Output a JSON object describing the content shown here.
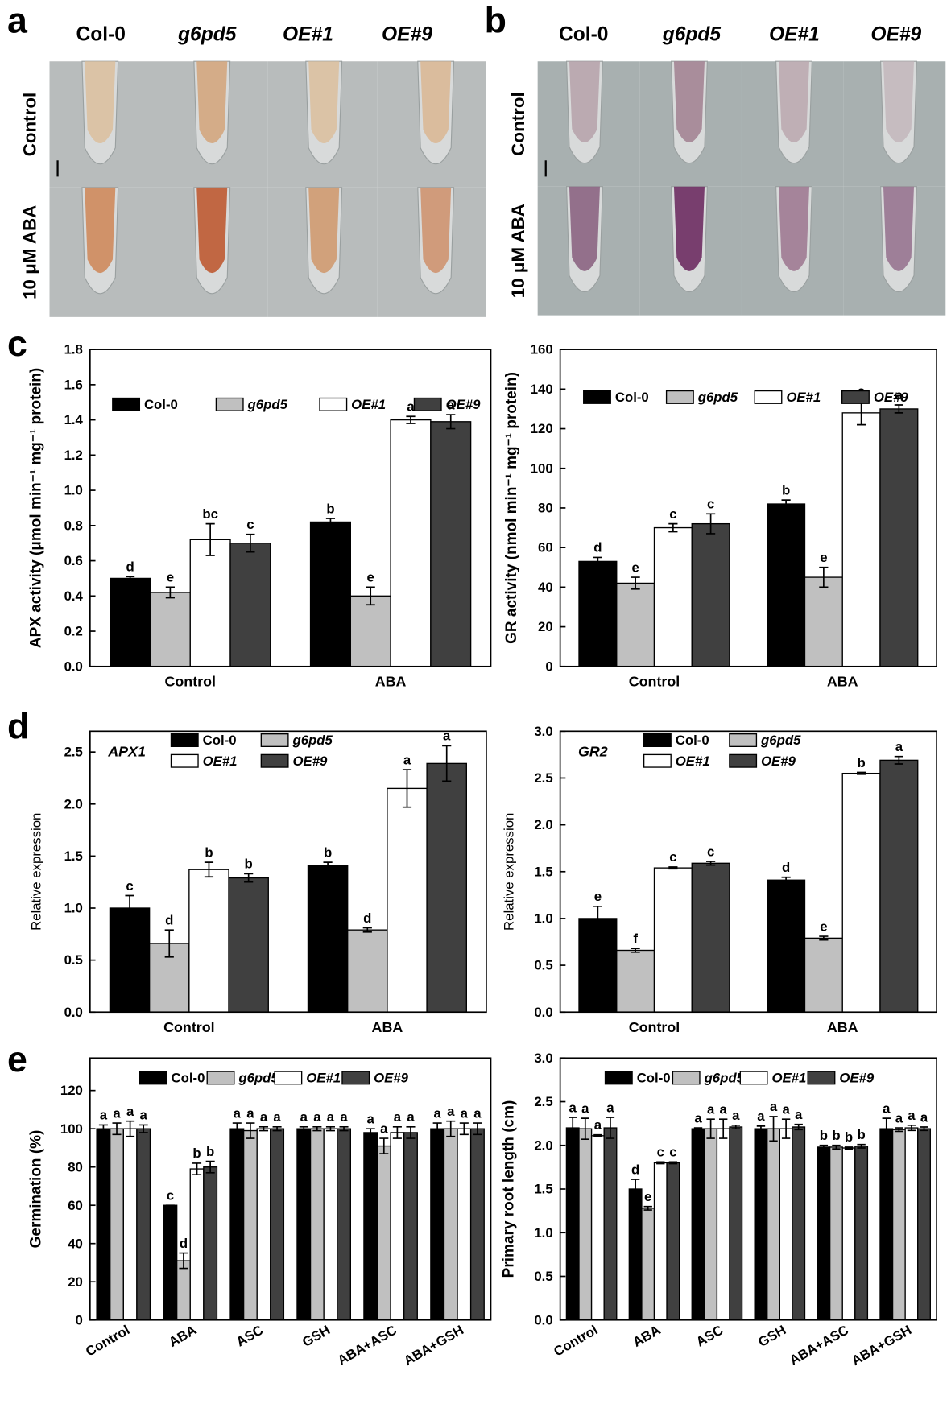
{
  "photo_panels": [
    {
      "label": "a",
      "columns": [
        "Col-0",
        "g6pd5",
        "OE#1",
        "OE#9"
      ],
      "rows": [
        "Control",
        "10 μM ABA"
      ]
    },
    {
      "label": "b",
      "columns": [
        "Col-0",
        "g6pd5",
        "OE#1",
        "OE#9"
      ],
      "rows": [
        "Control",
        "10 μM ABA"
      ]
    }
  ],
  "chart_data": [
    {
      "type": "bar",
      "panel_label": "c",
      "ylabel": "APX activity (μmol min⁻¹ mg⁻¹ protein)",
      "categories": [
        "Control",
        "ABA"
      ],
      "ylim": [
        0,
        1.8
      ],
      "yticks": [
        {
          "value": 0,
          "label": "0.0"
        },
        0.2,
        0.4,
        0.6,
        0.8,
        {
          "value": 1,
          "label": "1.0"
        },
        1.2,
        1.4,
        1.6,
        1.8
      ],
      "series": [
        {
          "name": "Col-0",
          "color": "#000000",
          "values": [
            0.5,
            0.82
          ],
          "errors": [
            0.01,
            0.02
          ],
          "letters": [
            "d",
            "b"
          ]
        },
        {
          "name": "g6pd5",
          "color": "#c0c0c0",
          "values": [
            0.42,
            0.4
          ],
          "errors": [
            0.03,
            0.05
          ],
          "letters": [
            "e",
            "e"
          ]
        },
        {
          "name": "OE#1",
          "color": "#ffffff",
          "values": [
            0.72,
            1.4
          ],
          "errors": [
            0.09,
            0.02
          ],
          "letters": [
            "bc",
            "a"
          ]
        },
        {
          "name": "OE#9",
          "color": "#404040",
          "values": [
            0.7,
            1.39
          ],
          "errors": [
            0.05,
            0.04
          ],
          "letters": [
            "c",
            "a"
          ]
        }
      ]
    },
    {
      "type": "bar",
      "ylabel": "GR activity (nmol min⁻¹ mg⁻¹ protein)",
      "categories": [
        "Control",
        "ABA"
      ],
      "ylim": [
        0,
        160
      ],
      "yticks": [
        0,
        20,
        40,
        60,
        80,
        100,
        120,
        140,
        160
      ],
      "series": [
        {
          "name": "Col-0",
          "color": "#000000",
          "values": [
            53,
            82
          ],
          "errors": [
            2,
            2
          ],
          "letters": [
            "d",
            "b"
          ]
        },
        {
          "name": "g6pd5",
          "color": "#c0c0c0",
          "values": [
            42,
            45
          ],
          "errors": [
            3,
            5
          ],
          "letters": [
            "e",
            "e"
          ]
        },
        {
          "name": "OE#1",
          "color": "#ffffff",
          "values": [
            70,
            128
          ],
          "errors": [
            2,
            6
          ],
          "letters": [
            "c",
            "a"
          ]
        },
        {
          "name": "OE#9",
          "color": "#404040",
          "values": [
            72,
            130
          ],
          "errors": [
            5,
            2
          ],
          "letters": [
            "c",
            "a"
          ]
        }
      ]
    },
    {
      "type": "bar",
      "panel_label": "d",
      "title": "APX1",
      "ylabel": "Relative expression",
      "categories": [
        "Control",
        "ABA"
      ],
      "ylim": [
        0,
        2.7
      ],
      "yticks": [
        {
          "value": 0,
          "label": "0.0"
        },
        0.5,
        {
          "value": 1,
          "label": "1.0"
        },
        1.5,
        {
          "value": 2,
          "label": "2.0"
        },
        2.5
      ],
      "series": [
        {
          "name": "Col-0",
          "color": "#000000",
          "values": [
            1.0,
            1.41
          ],
          "errors": [
            0.12,
            0.03
          ],
          "letters": [
            "c",
            "b"
          ]
        },
        {
          "name": "g6pd5",
          "color": "#c0c0c0",
          "values": [
            0.66,
            0.79
          ],
          "errors": [
            0.13,
            0.02
          ],
          "letters": [
            "d",
            "d"
          ]
        },
        {
          "name": "OE#1",
          "color": "#ffffff",
          "values": [
            1.37,
            2.15
          ],
          "errors": [
            0.07,
            0.18
          ],
          "letters": [
            "b",
            "a"
          ]
        },
        {
          "name": "OE#9",
          "color": "#404040",
          "values": [
            1.29,
            2.39
          ],
          "errors": [
            0.04,
            0.17
          ],
          "letters": [
            "b",
            "a"
          ]
        }
      ]
    },
    {
      "type": "bar",
      "title": "GR2",
      "ylabel": "Relative expression",
      "categories": [
        "Control",
        "ABA"
      ],
      "ylim": [
        0,
        3
      ],
      "yticks": [
        {
          "value": 0,
          "label": "0.0"
        },
        0.5,
        {
          "value": 1,
          "label": "1.0"
        },
        1.5,
        {
          "value": 2,
          "label": "2.0"
        },
        2.5,
        {
          "value": 3,
          "label": "3.0"
        }
      ],
      "series": [
        {
          "name": "Col-0",
          "color": "#000000",
          "values": [
            1.0,
            1.41
          ],
          "errors": [
            0.13,
            0.03
          ],
          "letters": [
            "e",
            "d"
          ]
        },
        {
          "name": "g6pd5",
          "color": "#c0c0c0",
          "values": [
            0.66,
            0.79
          ],
          "errors": [
            0.02,
            0.02
          ],
          "letters": [
            "f",
            "e"
          ]
        },
        {
          "name": "OE#1",
          "color": "#ffffff",
          "values": [
            1.54,
            2.55
          ],
          "errors": [
            0.01,
            0.01
          ],
          "letters": [
            "c",
            "b"
          ]
        },
        {
          "name": "OE#9",
          "color": "#404040",
          "values": [
            1.59,
            2.69
          ],
          "errors": [
            0.02,
            0.04
          ],
          "letters": [
            "c",
            "a"
          ]
        }
      ]
    },
    {
      "type": "bar",
      "panel_label": "e",
      "ylabel": "Germination (%)",
      "categories": [
        "Control",
        "ABA",
        "ASC",
        "GSH",
        "ABA+ASC",
        "ABA+GSH"
      ],
      "ylim": [
        0,
        137
      ],
      "yticks": [
        0,
        20,
        40,
        60,
        80,
        100,
        120
      ],
      "series": [
        {
          "name": "Col-0",
          "color": "#000000",
          "values": [
            100,
            60,
            100,
            100,
            98,
            100
          ],
          "errors": [
            2,
            0,
            3,
            1,
            2,
            3
          ],
          "letters": [
            "a",
            "c",
            "a",
            "a",
            "a",
            "a"
          ]
        },
        {
          "name": "g6pd5",
          "color": "#c0c0c0",
          "values": [
            100,
            31,
            99,
            100,
            91,
            100
          ],
          "errors": [
            3,
            4,
            4,
            1,
            4,
            4
          ],
          "letters": [
            "a",
            "d",
            "a",
            "a",
            "a",
            "a"
          ]
        },
        {
          "name": "OE#1",
          "color": "#ffffff",
          "values": [
            100,
            79,
            100,
            100,
            98,
            100
          ],
          "errors": [
            4,
            3,
            1,
            1,
            3,
            3
          ],
          "letters": [
            "a",
            "b",
            "a",
            "a",
            "a",
            "a"
          ]
        },
        {
          "name": "OE#9",
          "color": "#404040",
          "values": [
            100,
            80,
            100,
            100,
            98,
            100
          ],
          "errors": [
            2,
            3,
            1,
            1,
            3,
            3
          ],
          "letters": [
            "a",
            "b",
            "a",
            "a",
            "a",
            "a"
          ]
        }
      ]
    },
    {
      "type": "bar",
      "ylabel": "Primary root length (cm)",
      "categories": [
        "Control",
        "ABA",
        "ASC",
        "GSH",
        "ABA+ASC",
        "ABA+GSH"
      ],
      "ylim": [
        0,
        3
      ],
      "yticks": [
        {
          "value": 0,
          "label": "0.0"
        },
        0.5,
        {
          "value": 1,
          "label": "1.0"
        },
        1.5,
        {
          "value": 2,
          "label": "2.0"
        },
        2.5,
        {
          "value": 3,
          "label": "3.0"
        }
      ],
      "series": [
        {
          "name": "Col-0",
          "color": "#000000",
          "values": [
            2.2,
            1.5,
            2.19,
            2.19,
            1.98,
            2.19
          ],
          "errors": [
            0.12,
            0.11,
            0.01,
            0.03,
            0.02,
            0.12
          ],
          "letters": [
            "a",
            "d",
            "a",
            "a",
            "b",
            "a"
          ]
        },
        {
          "name": "g6pd5",
          "color": "#c0c0c0",
          "values": [
            2.19,
            1.28,
            2.19,
            2.19,
            1.98,
            2.18
          ],
          "errors": [
            0.12,
            0.02,
            0.11,
            0.14,
            0.02,
            0.02
          ],
          "letters": [
            "a",
            "e",
            "a",
            "a",
            "b",
            "a"
          ]
        },
        {
          "name": "OE#1",
          "color": "#ffffff",
          "values": [
            2.11,
            1.8,
            2.19,
            2.19,
            1.97,
            2.2
          ],
          "errors": [
            0.01,
            0.01,
            0.11,
            0.11,
            0.01,
            0.03
          ],
          "letters": [
            "a",
            "c",
            "a",
            "a",
            "b",
            "a"
          ]
        },
        {
          "name": "OE#9",
          "color": "#404040",
          "values": [
            2.2,
            1.8,
            2.21,
            2.21,
            1.99,
            2.19
          ],
          "errors": [
            0.12,
            0.01,
            0.02,
            0.03,
            0.02,
            0.02
          ],
          "letters": [
            "a",
            "c",
            "a",
            "a",
            "b",
            "a"
          ]
        }
      ]
    }
  ]
}
